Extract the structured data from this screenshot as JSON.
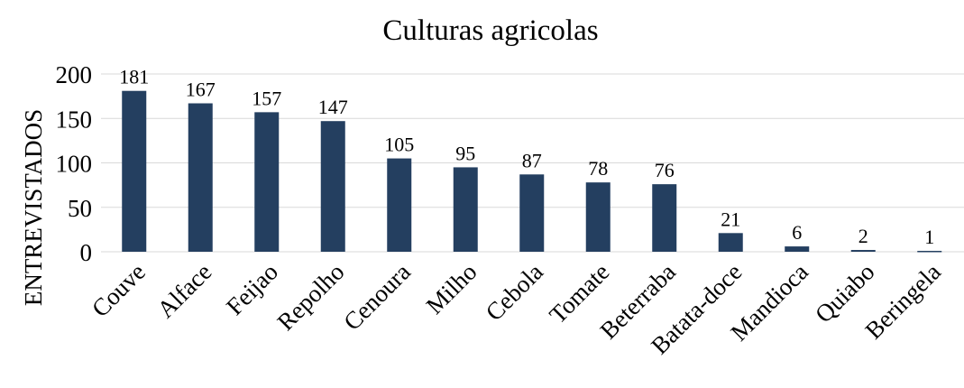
{
  "chart_data": {
    "type": "bar",
    "title": "Culturas agricolas",
    "xlabel": "",
    "ylabel": "ENTREVISTADOS",
    "categories": [
      "Couve",
      "Alface",
      "Feijao",
      "Repolho",
      "Cenoura",
      "Milho",
      "Cebola",
      "Tomate",
      "Beterraba",
      "Batata-doce",
      "Mandioca",
      "Quiabo",
      "Beringela"
    ],
    "values": [
      181,
      167,
      157,
      147,
      105,
      95,
      87,
      78,
      76,
      21,
      6,
      2,
      1
    ],
    "ylim": [
      0,
      200
    ],
    "yticks": [
      0,
      50,
      100,
      150,
      200
    ],
    "grid": true,
    "legend": "none",
    "colors": {
      "bar": "#243F60",
      "grid": "#D9D9D9",
      "text": "#000000"
    }
  }
}
